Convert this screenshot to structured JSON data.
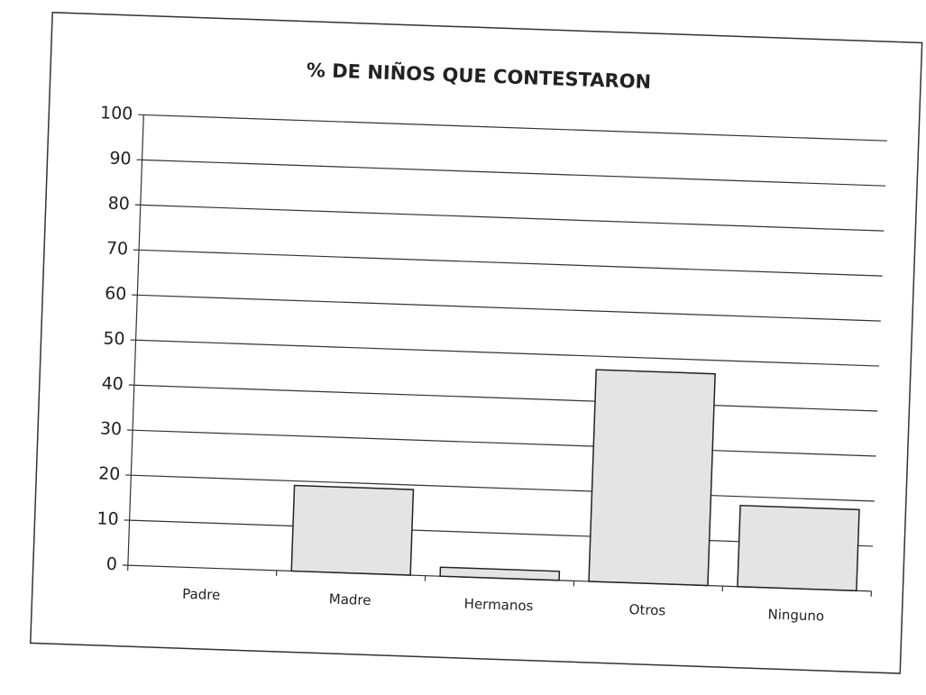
{
  "chart_data": {
    "type": "bar",
    "title": "% DE NIÑOS QUE CONTESTARON",
    "categories": [
      "Padre",
      "Madre",
      "Hermanos",
      "Otros",
      "Ninguno"
    ],
    "values": [
      0,
      19,
      2,
      47,
      18
    ],
    "color": "#e4e4e4",
    "ylim": [
      0,
      100
    ],
    "yticks": [
      0,
      10,
      20,
      30,
      40,
      50,
      60,
      70,
      80,
      90,
      100
    ],
    "grid": true
  }
}
